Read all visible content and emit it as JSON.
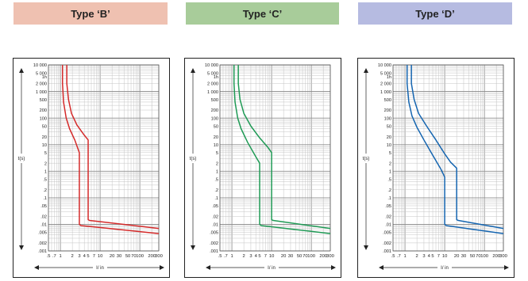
{
  "headers": [
    {
      "label": "Type ‘B’",
      "color": "#efc1b1"
    },
    {
      "label": "Type ‘C’",
      "color": "#a8cc9a"
    },
    {
      "label": "Type ‘D’",
      "color": "#b6bbe1"
    }
  ],
  "chart_data": [
    {
      "type": "line",
      "title": "Type ‘B’",
      "xlabel": "I/ in",
      "ylabel": "t(s)",
      "x_scale": "log",
      "y_scale": "log",
      "xlim": [
        0.5,
        300
      ],
      "ylim": [
        0.001,
        10000
      ],
      "x_ticks": [
        ".5",
        ".7",
        "1",
        "2",
        "3",
        "4",
        "5",
        "7",
        "10",
        "20",
        "30",
        "50",
        "70",
        "100",
        "200",
        "300"
      ],
      "y_ticks": [
        "10 000",
        "5 000",
        "1h",
        "2 000",
        "1 000",
        "500",
        "200",
        "100",
        "50",
        "20",
        "10",
        "5",
        "2",
        "1",
        ".5",
        ".2",
        ".1",
        ".05",
        ".02",
        ".01",
        ".005",
        ".002",
        ".001"
      ],
      "color": "#d42a2a",
      "series": [
        {
          "points": [
            [
              1.13,
              10000
            ],
            [
              1.13,
              2000
            ],
            [
              1.2,
              400
            ],
            [
              1.4,
              100
            ],
            [
              1.7,
              40
            ],
            [
              2.3,
              15
            ],
            [
              3,
              5
            ],
            [
              3,
              0.01
            ],
            [
              3.3,
              0.009
            ],
            [
              300,
              0.0045
            ]
          ]
        },
        {
          "points": [
            [
              1.45,
              10000
            ],
            [
              1.45,
              2000
            ],
            [
              1.6,
              500
            ],
            [
              1.9,
              150
            ],
            [
              2.6,
              55
            ],
            [
              3.8,
              25
            ],
            [
              5,
              15
            ],
            [
              5,
              0.015
            ],
            [
              5.4,
              0.014
            ],
            [
              300,
              0.007
            ]
          ]
        }
      ]
    },
    {
      "type": "line",
      "title": "Type ‘C’",
      "xlabel": "I/ in",
      "ylabel": "t(s)",
      "x_scale": "log",
      "y_scale": "log",
      "xlim": [
        0.5,
        300
      ],
      "ylim": [
        0.001,
        10000
      ],
      "x_ticks": [
        ".5",
        ".7",
        "1",
        "2",
        "3",
        "4",
        "5",
        "7",
        "10",
        "20",
        "30",
        "50",
        "70",
        "100",
        "200",
        "300"
      ],
      "y_ticks": [
        "10 000",
        "5 000",
        "1h",
        "2 000",
        "1 000",
        "500",
        "200",
        "100",
        "50",
        "20",
        "10",
        "5",
        "2",
        "1",
        ".5",
        ".2",
        ".1",
        ".05",
        ".02",
        ".01",
        ".005",
        ".002",
        ".001"
      ],
      "color": "#1f9a55",
      "series": [
        {
          "points": [
            [
              1.13,
              10000
            ],
            [
              1.13,
              2000
            ],
            [
              1.2,
              400
            ],
            [
              1.4,
              100
            ],
            [
              1.7,
              40
            ],
            [
              2.5,
              12
            ],
            [
              4,
              3.5
            ],
            [
              5,
              2
            ],
            [
              5,
              0.01
            ],
            [
              5.5,
              0.009
            ],
            [
              300,
              0.0045
            ]
          ]
        },
        {
          "points": [
            [
              1.45,
              10000
            ],
            [
              1.45,
              2000
            ],
            [
              1.6,
              500
            ],
            [
              2,
              150
            ],
            [
              3,
              50
            ],
            [
              5,
              18
            ],
            [
              8,
              8
            ],
            [
              10,
              5
            ],
            [
              10,
              0.015
            ],
            [
              11,
              0.014
            ],
            [
              300,
              0.007
            ]
          ]
        }
      ]
    },
    {
      "type": "line",
      "title": "Type ‘D’",
      "xlabel": "I/ in",
      "ylabel": "t(s)",
      "x_scale": "log",
      "y_scale": "log",
      "xlim": [
        0.5,
        300
      ],
      "ylim": [
        0.001,
        10000
      ],
      "x_ticks": [
        ".5",
        ".7",
        "1",
        "2",
        "3",
        "4",
        "5",
        "7",
        "10",
        "20",
        "30",
        "50",
        "70",
        "100",
        "200",
        "300"
      ],
      "y_ticks": [
        "10 000",
        "5 000",
        "1h",
        "2 000",
        "1 000",
        "500",
        "200",
        "100",
        "50",
        "20",
        "10",
        "5",
        "2",
        "1",
        ".5",
        ".2",
        ".1",
        ".05",
        ".02",
        ".01",
        ".005",
        ".002",
        ".001"
      ],
      "color": "#1565b0",
      "series": [
        {
          "points": [
            [
              1.13,
              10000
            ],
            [
              1.13,
              2000
            ],
            [
              1.25,
              400
            ],
            [
              1.5,
              120
            ],
            [
              2,
              45
            ],
            [
              3,
              15
            ],
            [
              5,
              4
            ],
            [
              8,
              1.2
            ],
            [
              10,
              0.6
            ],
            [
              10,
              0.01
            ],
            [
              11,
              0.009
            ],
            [
              300,
              0.0045
            ]
          ]
        },
        {
          "points": [
            [
              1.45,
              10000
            ],
            [
              1.45,
              2000
            ],
            [
              1.7,
              500
            ],
            [
              2.2,
              150
            ],
            [
              3.5,
              50
            ],
            [
              6,
              15
            ],
            [
              10,
              4.5
            ],
            [
              14,
              2.2
            ],
            [
              20,
              1.3
            ],
            [
              20,
              0.015
            ],
            [
              22,
              0.014
            ],
            [
              300,
              0.007
            ]
          ]
        }
      ]
    }
  ]
}
